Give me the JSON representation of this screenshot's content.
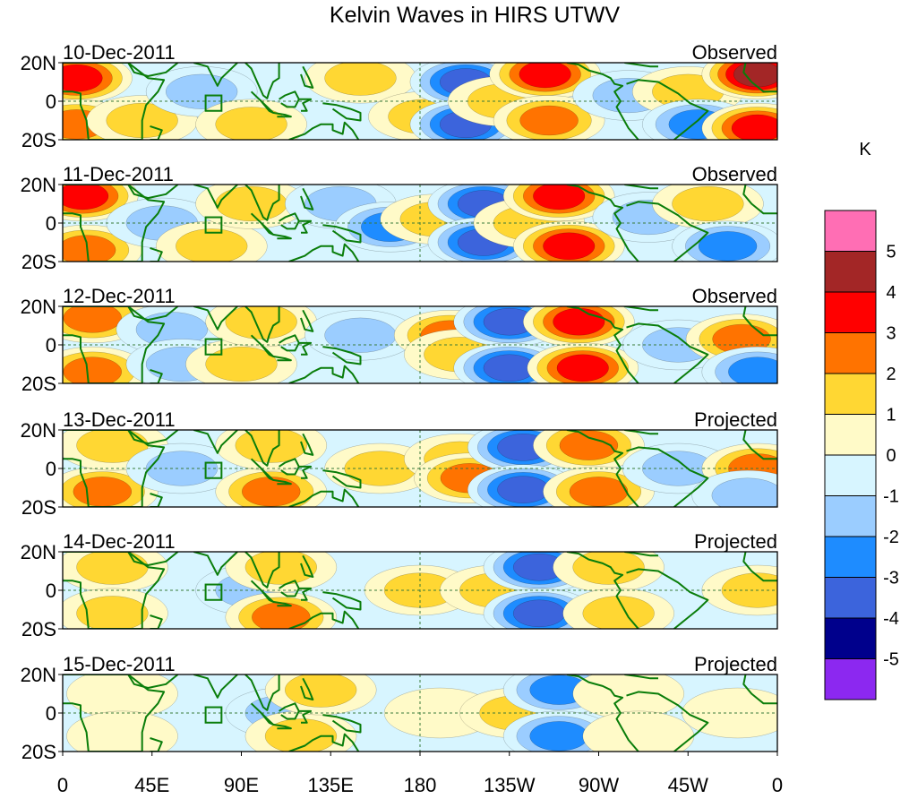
{
  "chart_data": {
    "type": "heatmap",
    "title": "Kelvin Waves in HIRS UTWV",
    "colorbar": {
      "unit": "K",
      "tick_labels": [
        "5",
        "4",
        "3",
        "2",
        "1",
        "0",
        "-1",
        "-2",
        "-3",
        "-4",
        "-5"
      ],
      "bins_top_to_bottom": [
        {
          "range": "> 5",
          "color": "#ff6eb4"
        },
        {
          "range": "4 to 5",
          "color": "#a32626"
        },
        {
          "range": "3 to 4",
          "color": "#ff0000"
        },
        {
          "range": "2 to 3",
          "color": "#ff7300"
        },
        {
          "range": "1 to 2",
          "color": "#ffd733"
        },
        {
          "range": "0 to 1",
          "color": "#fffac8"
        },
        {
          "range": "-1 to 0",
          "color": "#d7f5ff"
        },
        {
          "range": "-2 to -1",
          "color": "#9bcdff"
        },
        {
          "range": "-3 to -2",
          "color": "#1e8cff"
        },
        {
          "range": "-4 to -3",
          "color": "#3c64dc"
        },
        {
          "range": "-5 to -4",
          "color": "#00008c"
        },
        {
          "range": "< -5",
          "color": "#8c28f0"
        }
      ]
    },
    "x_tick_labels": [
      "0",
      "45E",
      "90E",
      "135E",
      "180",
      "135W",
      "90W",
      "45W",
      "0"
    ],
    "x_range_deg": [
      0,
      360
    ],
    "y_tick_labels": [
      "20N",
      "0",
      "20S"
    ],
    "y_range_deg": [
      -20,
      20
    ],
    "coastline_color": "#0a7d0a",
    "panels": [
      {
        "date": "10-Dec-2011",
        "label": "Observed",
        "features": [
          {
            "lon": 7,
            "lat": 12,
            "v": 4
          },
          {
            "lon": 7,
            "lat": -12,
            "v": 3
          },
          {
            "lon": 40,
            "lat": -10,
            "v": 2
          },
          {
            "lon": 70,
            "lat": 5,
            "v": -1.5
          },
          {
            "lon": 95,
            "lat": -12,
            "v": 1.5
          },
          {
            "lon": 150,
            "lat": 12,
            "v": 1.5
          },
          {
            "lon": 182,
            "lat": -8,
            "v": 1.5
          },
          {
            "lon": 203,
            "lat": 10,
            "v": -4
          },
          {
            "lon": 203,
            "lat": -12,
            "v": -4
          },
          {
            "lon": 222,
            "lat": 0,
            "v": 2
          },
          {
            "lon": 243,
            "lat": 14,
            "v": 4
          },
          {
            "lon": 245,
            "lat": -10,
            "v": 3
          },
          {
            "lon": 285,
            "lat": 3,
            "v": -2
          },
          {
            "lon": 315,
            "lat": 5,
            "v": 1.5
          },
          {
            "lon": 320,
            "lat": -12,
            "v": -3
          },
          {
            "lon": 350,
            "lat": 14,
            "v": 4.5
          },
          {
            "lon": 350,
            "lat": -14,
            "v": 3.5
          }
        ]
      },
      {
        "date": "11-Dec-2011",
        "label": "Observed",
        "features": [
          {
            "lon": 10,
            "lat": 14,
            "v": 3.5
          },
          {
            "lon": 12,
            "lat": -14,
            "v": 3
          },
          {
            "lon": 50,
            "lat": 0,
            "v": -1.5
          },
          {
            "lon": 75,
            "lat": -12,
            "v": 2
          },
          {
            "lon": 95,
            "lat": 10,
            "v": 1.5
          },
          {
            "lon": 140,
            "lat": 10,
            "v": -1.5
          },
          {
            "lon": 165,
            "lat": -2,
            "v": -2.5
          },
          {
            "lon": 188,
            "lat": 2,
            "v": 1.5
          },
          {
            "lon": 212,
            "lat": 10,
            "v": -4
          },
          {
            "lon": 212,
            "lat": -10,
            "v": -4
          },
          {
            "lon": 235,
            "lat": 0,
            "v": 1.5
          },
          {
            "lon": 250,
            "lat": 14,
            "v": 3.5
          },
          {
            "lon": 255,
            "lat": -12,
            "v": 3.5
          },
          {
            "lon": 295,
            "lat": 3,
            "v": -2
          },
          {
            "lon": 325,
            "lat": 10,
            "v": 1.5
          },
          {
            "lon": 335,
            "lat": -12,
            "v": -3
          }
        ]
      },
      {
        "date": "12-Dec-2011",
        "label": "Observed",
        "features": [
          {
            "lon": 15,
            "lat": 14,
            "v": 3
          },
          {
            "lon": 15,
            "lat": -14,
            "v": 3
          },
          {
            "lon": 55,
            "lat": 8,
            "v": -2
          },
          {
            "lon": 60,
            "lat": -10,
            "v": -2
          },
          {
            "lon": 90,
            "lat": -10,
            "v": 1.5
          },
          {
            "lon": 100,
            "lat": 12,
            "v": 1.5
          },
          {
            "lon": 150,
            "lat": 5,
            "v": -1.5
          },
          {
            "lon": 195,
            "lat": 5,
            "v": 2.5
          },
          {
            "lon": 200,
            "lat": -5,
            "v": 2
          },
          {
            "lon": 225,
            "lat": 12,
            "v": -4
          },
          {
            "lon": 225,
            "lat": -12,
            "v": -4
          },
          {
            "lon": 260,
            "lat": 12,
            "v": 3.5
          },
          {
            "lon": 262,
            "lat": -12,
            "v": 3.5
          },
          {
            "lon": 310,
            "lat": 0,
            "v": -1.5
          },
          {
            "lon": 342,
            "lat": 3,
            "v": 3
          },
          {
            "lon": 350,
            "lat": -14,
            "v": -3
          }
        ]
      },
      {
        "date": "13-Dec-2011",
        "label": "Projected",
        "features": [
          {
            "lon": 20,
            "lat": -12,
            "v": 3
          },
          {
            "lon": 25,
            "lat": 12,
            "v": 1.5
          },
          {
            "lon": 60,
            "lat": 0,
            "v": -1.5
          },
          {
            "lon": 105,
            "lat": -12,
            "v": 3
          },
          {
            "lon": 105,
            "lat": 12,
            "v": 1.5
          },
          {
            "lon": 160,
            "lat": 0,
            "v": 1.5
          },
          {
            "lon": 200,
            "lat": 5,
            "v": 1.5
          },
          {
            "lon": 205,
            "lat": -5,
            "v": 2.5
          },
          {
            "lon": 232,
            "lat": 11,
            "v": -4
          },
          {
            "lon": 232,
            "lat": -11,
            "v": -4
          },
          {
            "lon": 265,
            "lat": 12,
            "v": 2.5
          },
          {
            "lon": 270,
            "lat": -12,
            "v": 2.5
          },
          {
            "lon": 310,
            "lat": 0,
            "v": -2
          },
          {
            "lon": 350,
            "lat": 0,
            "v": 3
          },
          {
            "lon": 345,
            "lat": -14,
            "v": -2
          }
        ]
      },
      {
        "date": "14-Dec-2011",
        "label": "Projected",
        "features": [
          {
            "lon": 25,
            "lat": 12,
            "v": 1.5
          },
          {
            "lon": 25,
            "lat": -12,
            "v": 1.5
          },
          {
            "lon": 95,
            "lat": 0,
            "v": -1.5
          },
          {
            "lon": 110,
            "lat": -14,
            "v": 3
          },
          {
            "lon": 110,
            "lat": 12,
            "v": 2
          },
          {
            "lon": 180,
            "lat": 0,
            "v": 1.5
          },
          {
            "lon": 218,
            "lat": 0,
            "v": 1.5
          },
          {
            "lon": 240,
            "lat": 12,
            "v": -3.5
          },
          {
            "lon": 240,
            "lat": -12,
            "v": -3.5
          },
          {
            "lon": 275,
            "lat": 12,
            "v": 1.5
          },
          {
            "lon": 280,
            "lat": -12,
            "v": 1.5
          },
          {
            "lon": 350,
            "lat": 0,
            "v": 1.5
          }
        ]
      },
      {
        "date": "15-Dec-2011",
        "label": "Projected",
        "features": [
          {
            "lon": 30,
            "lat": 10,
            "v": 1
          },
          {
            "lon": 30,
            "lat": -12,
            "v": 1
          },
          {
            "lon": 110,
            "lat": 0,
            "v": -1.5
          },
          {
            "lon": 120,
            "lat": -12,
            "v": 1.5
          },
          {
            "lon": 130,
            "lat": 12,
            "v": 1.5
          },
          {
            "lon": 190,
            "lat": 0,
            "v": 1
          },
          {
            "lon": 228,
            "lat": 0,
            "v": 1.5
          },
          {
            "lon": 250,
            "lat": 12,
            "v": -3
          },
          {
            "lon": 250,
            "lat": -12,
            "v": -3
          },
          {
            "lon": 285,
            "lat": 10,
            "v": 1
          },
          {
            "lon": 290,
            "lat": -12,
            "v": 1
          },
          {
            "lon": 340,
            "lat": 0,
            "v": 1
          }
        ]
      }
    ]
  }
}
